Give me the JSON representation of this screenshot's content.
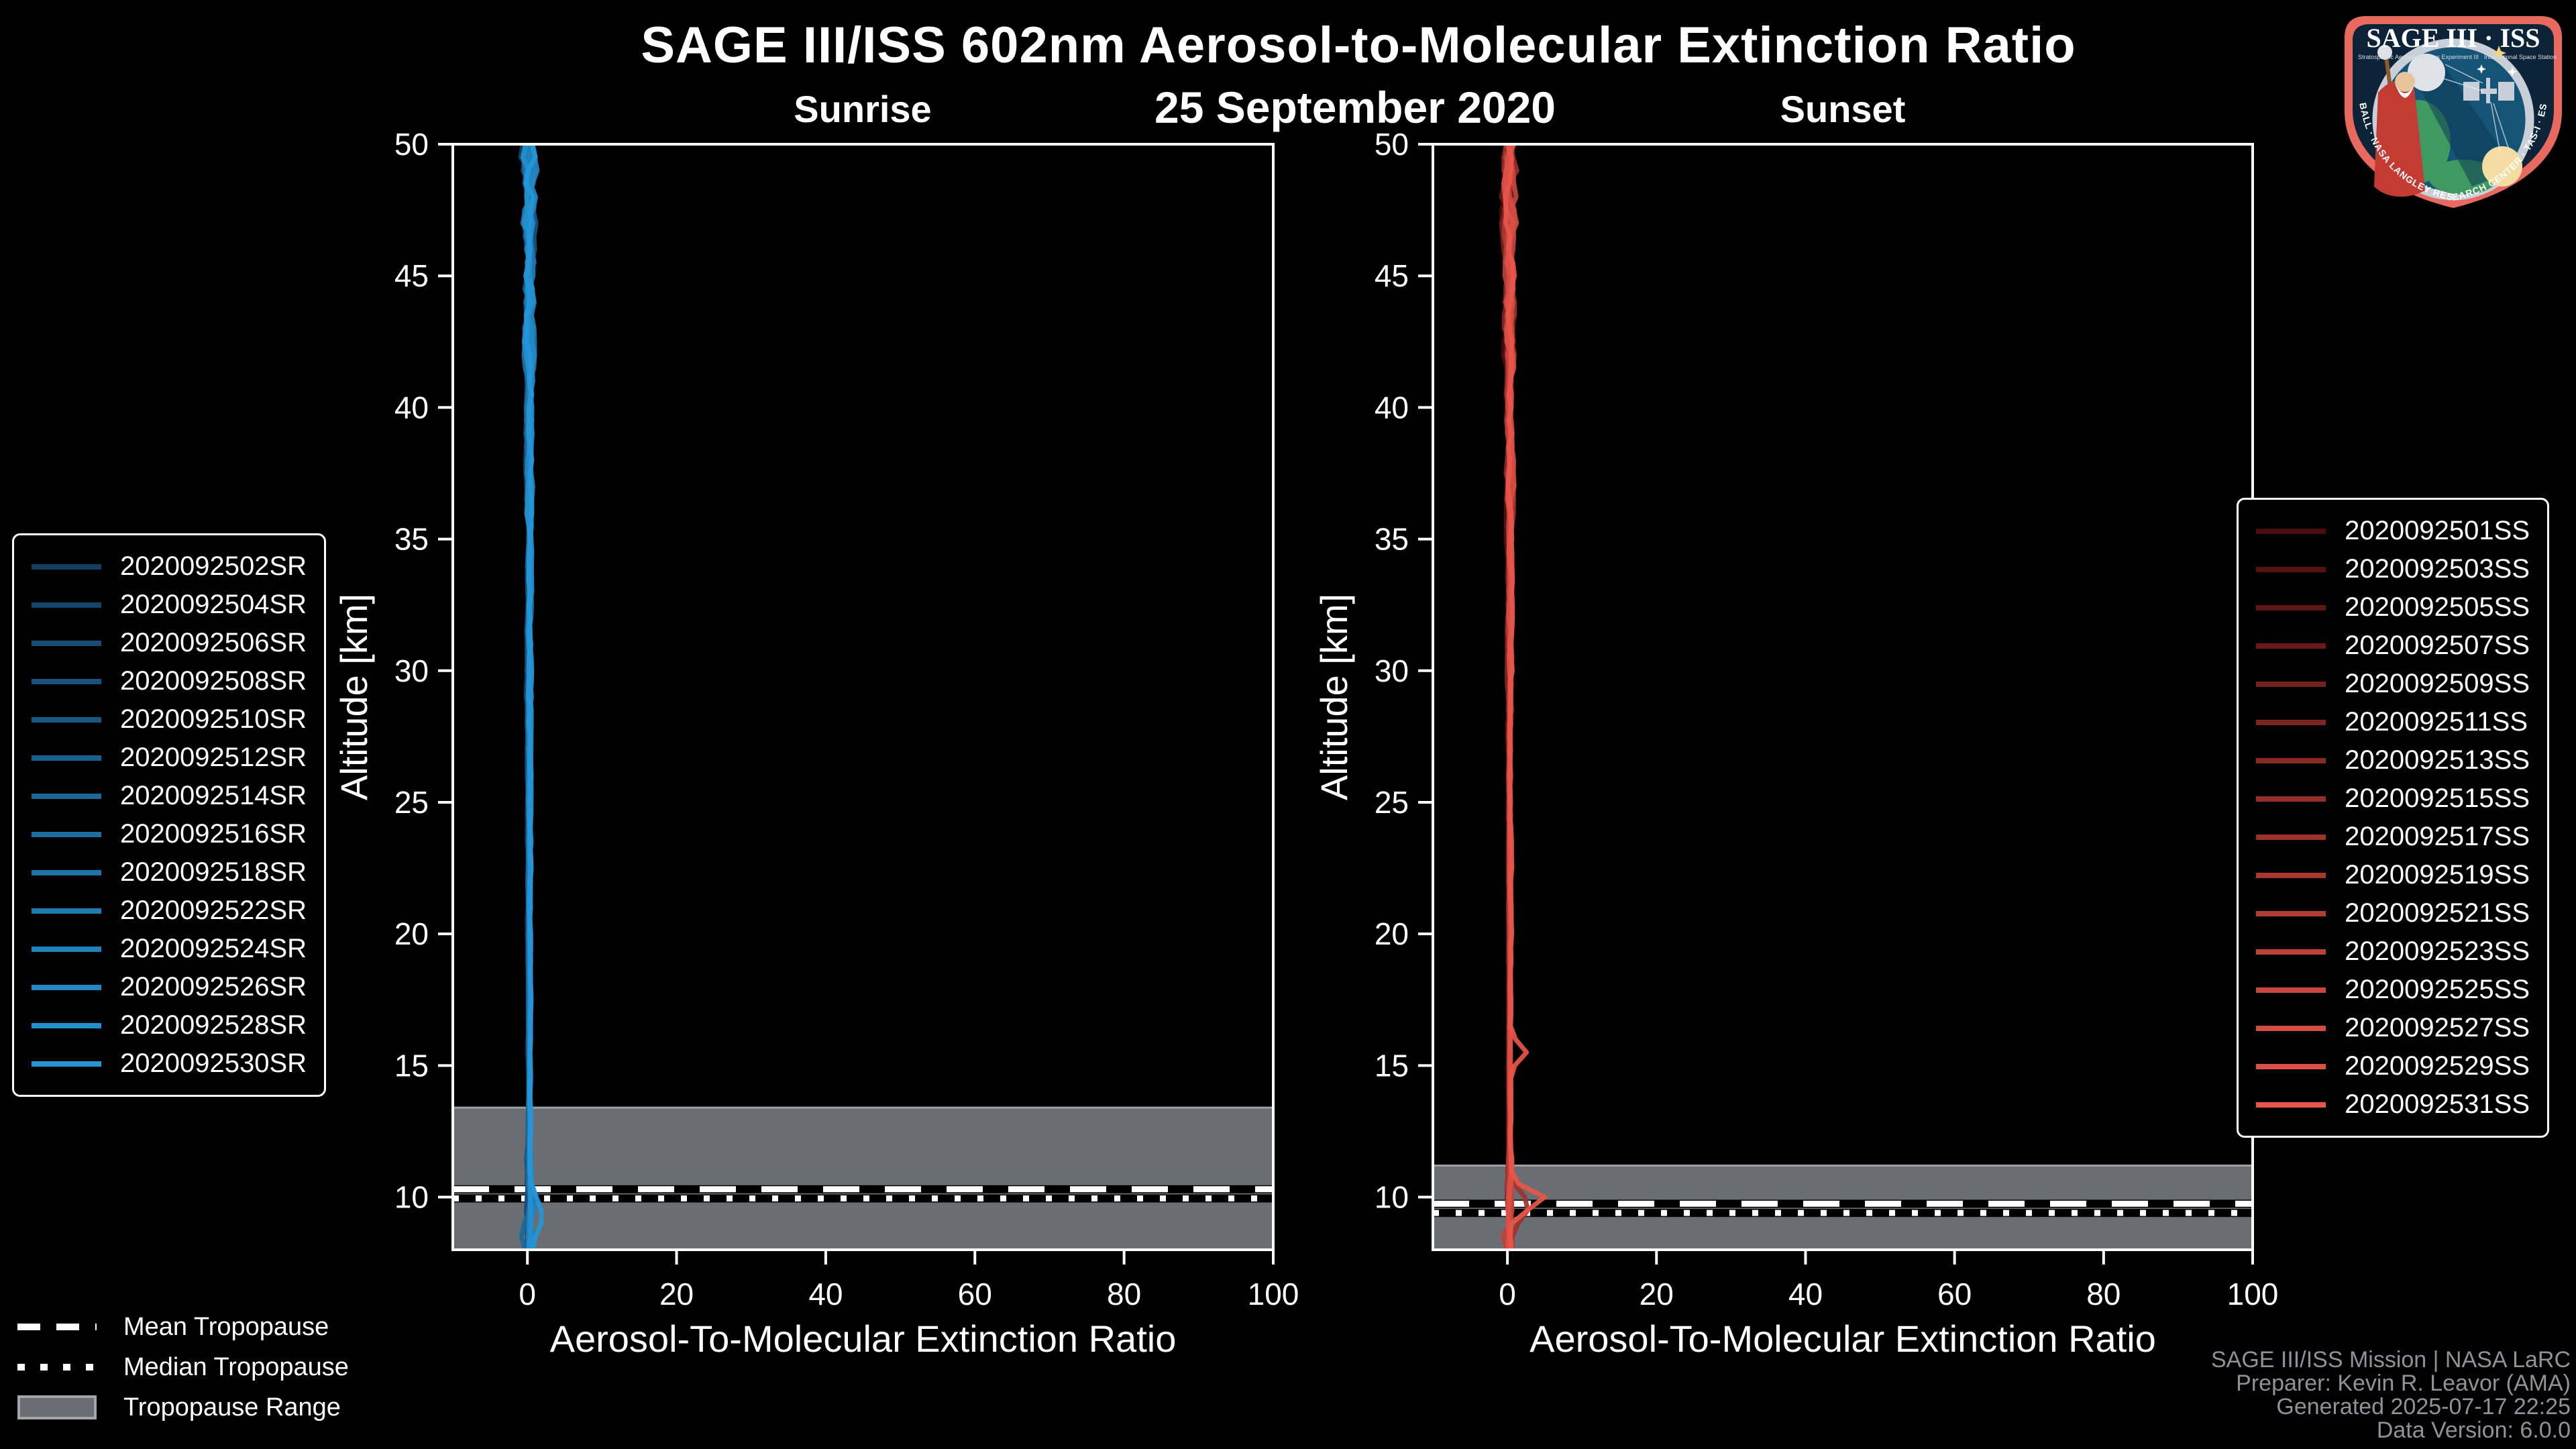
{
  "header": {
    "title": "SAGE III/ISS 602nm Aerosol-to-Molecular Extinction Ratio",
    "date": "25 September 2020"
  },
  "tropopause_legend": {
    "mean_label": "Mean Tropopause",
    "median_label": "Median Tropopause",
    "range_label": "Tropopause Range",
    "band_color": "#6a6e72",
    "band_edge_color": "#9aa0a6"
  },
  "footer": {
    "lines": [
      "SAGE III/ISS Mission | NASA LaRC",
      "Preparer: Kevin R. Leavor (AMA)",
      "Generated 2025-07-17 22:25",
      "Data Version: 6.0.0"
    ]
  },
  "logo": {
    "title": "SAGE III · ISS",
    "subtitle_left": "Stratospheric Aerosol and Gas Experiment III",
    "subtitle_right": "International Space Station",
    "bottom_text": "BALL · NASA LANGLEY RESEARCH CENTER · TAS-I · ESA",
    "border_color": "#E8695D",
    "field_color": "#0D2438"
  },
  "chart_data": [
    {
      "type": "line",
      "panel": "sunrise",
      "title": "Sunrise",
      "xlabel": "Aerosol-To-Molecular Extinction Ratio",
      "ylabel": "Altitude [km]",
      "xlim": [
        -10,
        100
      ],
      "ylim": [
        8,
        50
      ],
      "xticks": [
        0,
        20,
        40,
        60,
        80,
        100
      ],
      "yticks": [
        10,
        15,
        20,
        25,
        30,
        35,
        40,
        45,
        50
      ],
      "grid": false,
      "legend_side": "left",
      "tropopause": {
        "mean_km": 10.3,
        "median_km": 9.95,
        "range_top_km": 13.4,
        "range_bottom_km": 8.0
      },
      "profile": {
        "base_ratio": 0.25,
        "series_spread": 0.3,
        "step_km": 0.5,
        "jitter_bands": [
          [
            47,
            1.3
          ],
          [
            42,
            0.9
          ],
          [
            36,
            0.55
          ],
          [
            28,
            0.35
          ],
          [
            20,
            0.22
          ],
          [
            12,
            0.15
          ],
          [
            0,
            0.45
          ]
        ]
      },
      "bumps": [
        {
          "series": 13,
          "alt_km": 9.3,
          "dx": 1.5,
          "width_km": 0.7
        },
        {
          "series": 6,
          "alt_km": 8.7,
          "dx": -1.2,
          "width_km": 0.6
        },
        {
          "series": 10,
          "alt_km": 9.8,
          "dx": 0.9,
          "width_km": 0.5
        }
      ],
      "series": [
        {
          "label": "2020092502SR",
          "color": "#133F63"
        },
        {
          "label": "2020092504SR",
          "color": "#14466C"
        },
        {
          "label": "2020092506SR",
          "color": "#164C75"
        },
        {
          "label": "2020092508SR",
          "color": "#17537E"
        },
        {
          "label": "2020092510SR",
          "color": "#185A87"
        },
        {
          "label": "2020092512SR",
          "color": "#1A6090"
        },
        {
          "label": "2020092514SR",
          "color": "#1B6799"
        },
        {
          "label": "2020092516SR",
          "color": "#1C6EA2"
        },
        {
          "label": "2020092518SR",
          "color": "#1E75AB"
        },
        {
          "label": "2020092522SR",
          "color": "#1F7BB4"
        },
        {
          "label": "2020092524SR",
          "color": "#2082BD"
        },
        {
          "label": "2020092526SR",
          "color": "#2289C6"
        },
        {
          "label": "2020092528SR",
          "color": "#238FCF"
        },
        {
          "label": "2020092530SR",
          "color": "#2496D8"
        }
      ]
    },
    {
      "type": "line",
      "panel": "sunset",
      "title": "Sunset",
      "xlabel": "Aerosol-To-Molecular Extinction Ratio",
      "ylabel": "Altitude [km]",
      "xlim": [
        -10,
        100
      ],
      "ylim": [
        8,
        50
      ],
      "xticks": [
        0,
        20,
        40,
        60,
        80,
        100
      ],
      "yticks": [
        10,
        15,
        20,
        25,
        30,
        35,
        40,
        45,
        50
      ],
      "grid": false,
      "legend_side": "right",
      "tropopause": {
        "mean_km": 9.75,
        "median_km": 9.4,
        "range_top_km": 11.2,
        "range_bottom_km": 8.0
      },
      "profile": {
        "base_ratio": 0.3,
        "series_spread": 0.25,
        "step_km": 0.5,
        "jitter_bands": [
          [
            47,
            1.35
          ],
          [
            42,
            0.95
          ],
          [
            36,
            0.6
          ],
          [
            28,
            0.35
          ],
          [
            20,
            0.2
          ],
          [
            12,
            0.13
          ],
          [
            0,
            0.4
          ]
        ]
      },
      "bumps": [
        {
          "series": 15,
          "alt_km": 15.5,
          "dx": 2.2,
          "width_km": 0.45
        },
        {
          "series": 15,
          "alt_km": 9.9,
          "dx": 4.6,
          "width_km": 0.5
        },
        {
          "series": 8,
          "alt_km": 9.6,
          "dx": 2.4,
          "width_km": 0.7
        },
        {
          "series": 11,
          "alt_km": 8.5,
          "dx": -1.0,
          "width_km": 0.5
        }
      ],
      "series": [
        {
          "label": "2020092501SS",
          "color": "#4A0D0D"
        },
        {
          "label": "2020092503SS",
          "color": "#551211"
        },
        {
          "label": "2020092505SS",
          "color": "#5F1715"
        },
        {
          "label": "2020092507SS",
          "color": "#6A1B19"
        },
        {
          "label": "2020092509SS",
          "color": "#74201D"
        },
        {
          "label": "2020092511SS",
          "color": "#7F2521"
        },
        {
          "label": "2020092513SS",
          "color": "#892A25"
        },
        {
          "label": "2020092515SS",
          "color": "#942F29"
        },
        {
          "label": "2020092517SS",
          "color": "#9E332D"
        },
        {
          "label": "2020092519SS",
          "color": "#A93831"
        },
        {
          "label": "2020092521SS",
          "color": "#B33D35"
        },
        {
          "label": "2020092523SS",
          "color": "#BE4239"
        },
        {
          "label": "2020092525SS",
          "color": "#C8463D"
        },
        {
          "label": "2020092527SS",
          "color": "#D34B41"
        },
        {
          "label": "2020092529SS",
          "color": "#DD5045"
        },
        {
          "label": "2020092531SS",
          "color": "#E85549"
        }
      ]
    }
  ]
}
